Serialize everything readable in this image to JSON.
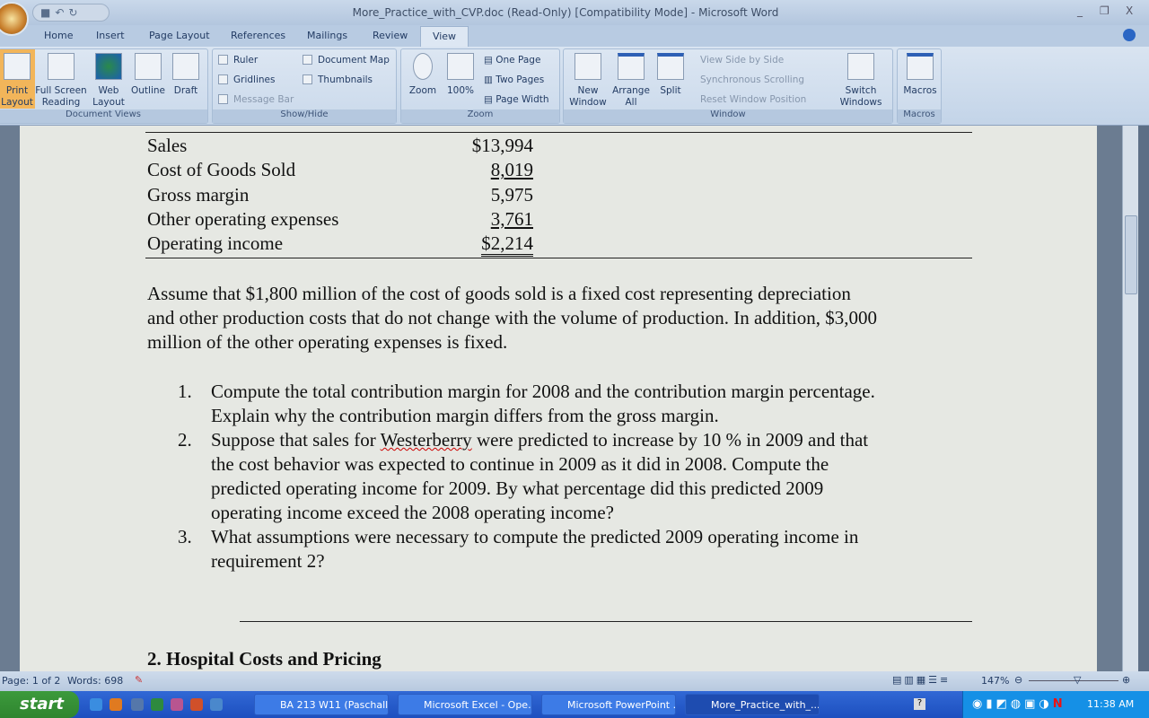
{
  "window": {
    "title": "More_Practice_with_CVP.doc (Read-Only) [Compatibility Mode] - Microsoft Word",
    "minimize": "_",
    "restore": "❐",
    "close": "X"
  },
  "tabs": [
    "Home",
    "Insert",
    "Page Layout",
    "References",
    "Mailings",
    "Review",
    "View"
  ],
  "ribbon": {
    "document_views": {
      "label": "Document Views",
      "buttons": [
        "Print Layout",
        "Full Screen Reading",
        "Web Layout",
        "Outline",
        "Draft"
      ]
    },
    "show_hide": {
      "label": "Show/Hide",
      "items": [
        "Ruler",
        "Document Map",
        "Gridlines",
        "Thumbnails",
        "Message Bar"
      ]
    },
    "zoom": {
      "label": "Zoom",
      "buttons": [
        "Zoom",
        "100%",
        "One Page",
        "Two Pages",
        "Page Width"
      ]
    },
    "window": {
      "label": "Window",
      "buttons": [
        "New Window",
        "Arrange All",
        "Split",
        "View Side by Side",
        "Synchronous Scrolling",
        "Reset Window Position",
        "Switch Windows"
      ]
    },
    "macros": {
      "label": "Macros",
      "buttons": [
        "Macros"
      ]
    }
  },
  "document": {
    "table": [
      {
        "label": "Sales",
        "value": "$13,994"
      },
      {
        "label": "Cost of Goods Sold",
        "value": "8,019"
      },
      {
        "label": "Gross margin",
        "value": "5,975"
      },
      {
        "label": "Other operating expenses",
        "value": "3,761"
      },
      {
        "label": "Operating income",
        "value": "$2,214"
      }
    ],
    "paragraph": [
      "Assume that $1,800 million of the cost of goods sold is a fixed cost representing depreciation",
      "and other production costs that do not change with the volume of production. In addition, $3,000",
      "million of the other operating expenses is fixed."
    ],
    "questions": [
      {
        "num": "1.",
        "lines": [
          "Compute the total contribution margin for 2008 and the contribution margin percentage.",
          "Explain why the contribution margin differs from the gross margin."
        ]
      },
      {
        "num": "2.",
        "lines": [
          "Suppose that sales for ",
          "Westerberry",
          " were predicted to increase by 10 % in 2009 and that",
          "the cost behavior was expected to continue in 2009 as it did in 2008. Compute the",
          "predicted operating income for 2009. By what percentage did this predicted 2009",
          "operating income exceed the 2008 operating income?"
        ]
      },
      {
        "num": "3.",
        "lines": [
          "What assumptions were necessary to compute the predicted 2009 operating income in",
          "requirement 2?"
        ]
      }
    ],
    "heading": "2.  Hospital Costs and Pricing"
  },
  "status": {
    "page": "Page: 1 of 2",
    "words": "Words: 698",
    "zoom": "147%"
  },
  "taskbar": {
    "start": "start",
    "tasks": [
      "BA 213 W11 (Paschall...",
      "Microsoft Excel - Ope...",
      "Microsoft PowerPoint ...",
      "More_Practice_with_..."
    ],
    "clock": "11:38 AM"
  }
}
